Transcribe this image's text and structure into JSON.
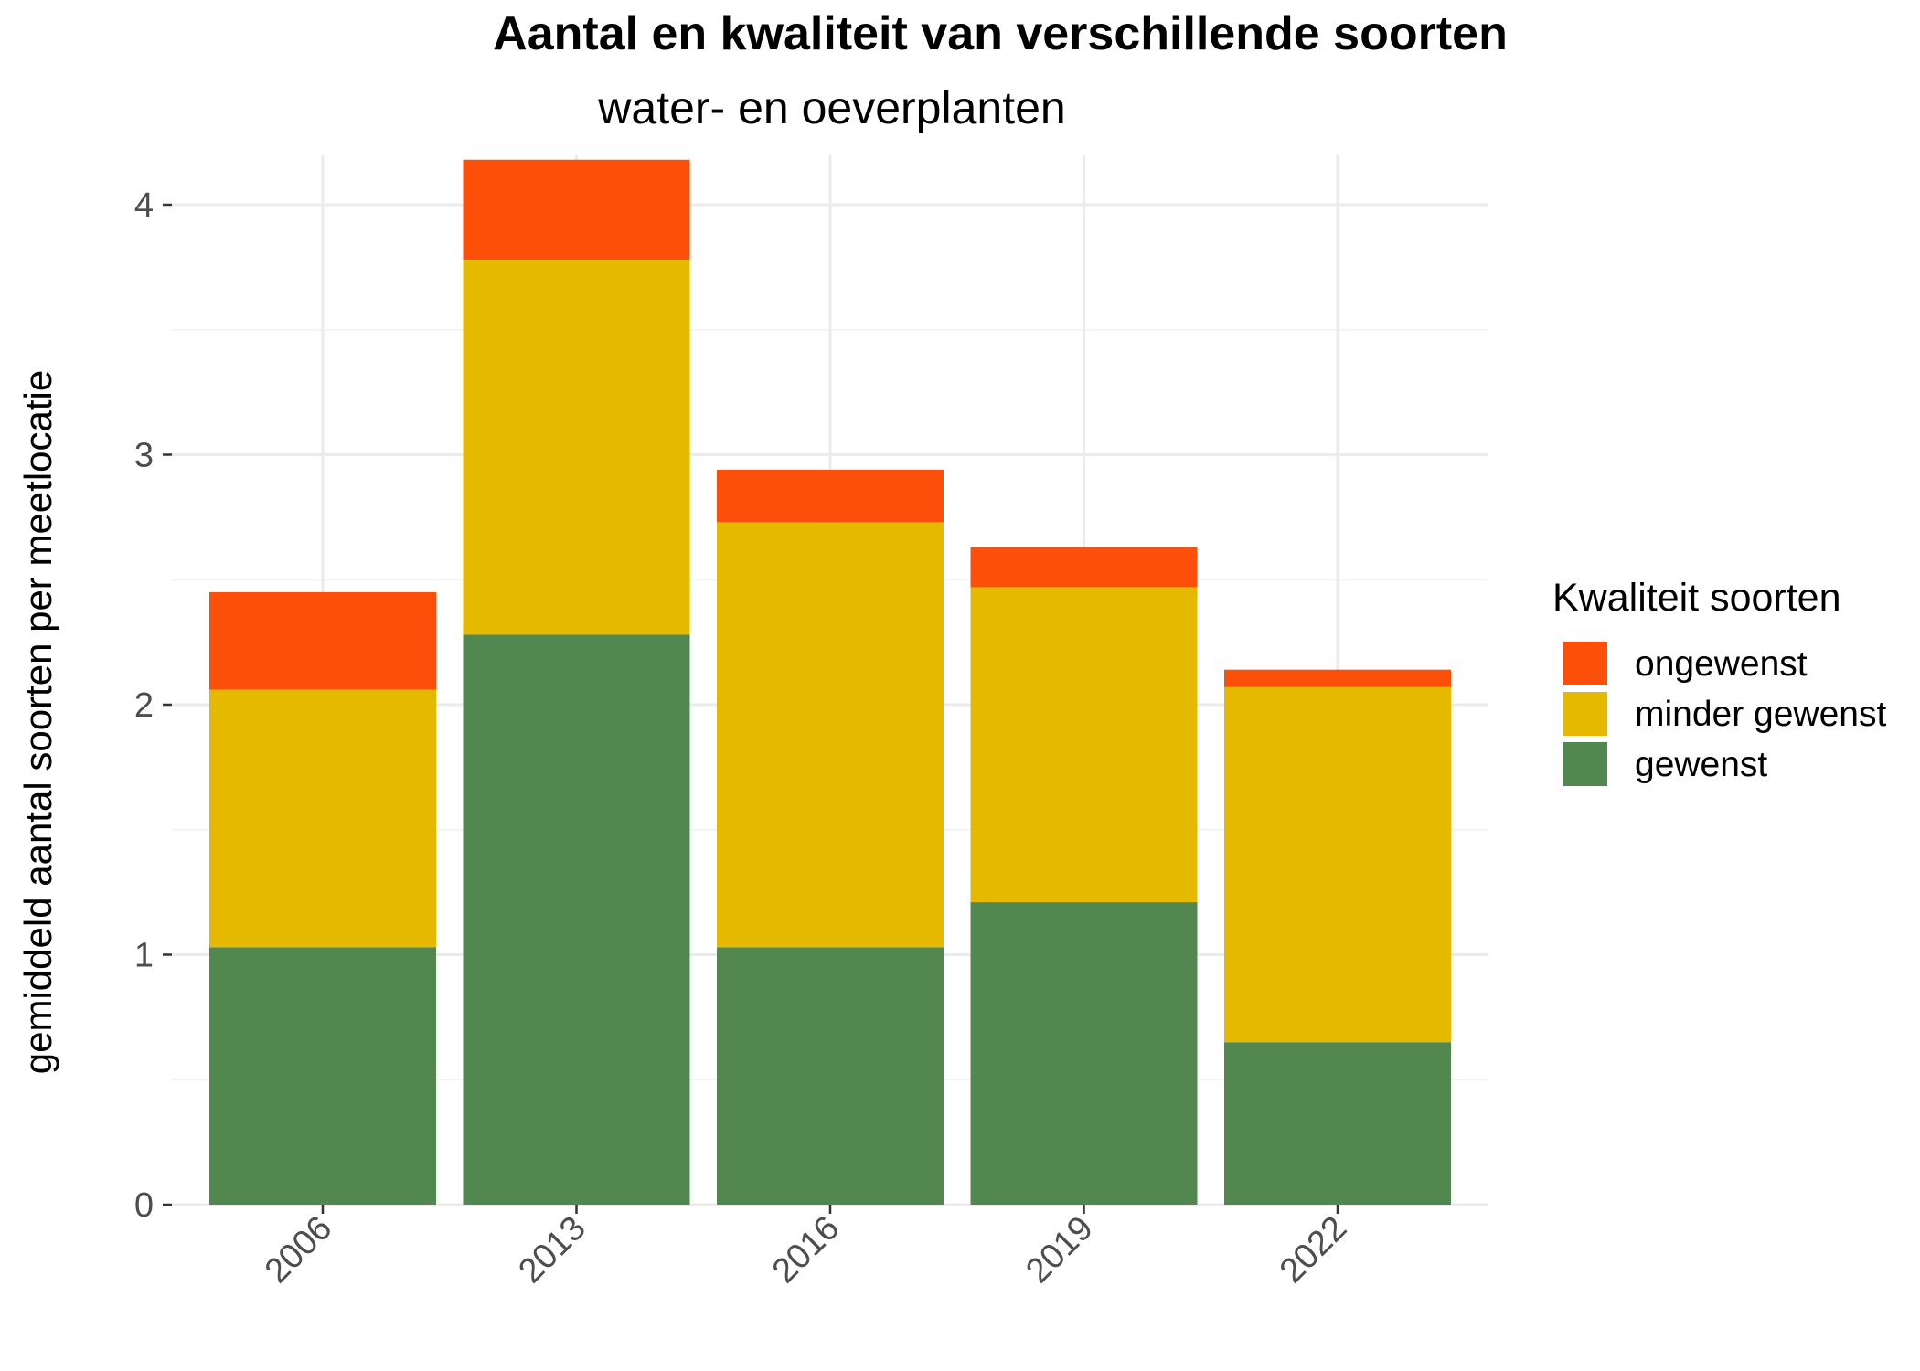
{
  "chart_data": {
    "type": "bar",
    "stacked": true,
    "title": "Aantal en kwaliteit van verschillende soorten",
    "subtitle": "water- en oeverplanten",
    "xlabel": "",
    "ylabel": "gemiddeld aantal soorten per meetlocatie",
    "categories": [
      "2006",
      "2013",
      "2016",
      "2019",
      "2022"
    ],
    "series": [
      {
        "name": "gewenst",
        "color": "#52874f",
        "values": [
          1.03,
          2.28,
          1.03,
          1.21,
          0.65
        ]
      },
      {
        "name": "minder gewenst",
        "color": "#e5b900",
        "values": [
          1.03,
          1.5,
          1.7,
          1.26,
          1.42
        ]
      },
      {
        "name": "ongewenst",
        "color": "#fc500a",
        "values": [
          0.39,
          0.4,
          0.21,
          0.16,
          0.07
        ]
      }
    ],
    "ylim": [
      0,
      4.2
    ],
    "yticks": [
      0,
      1,
      2,
      3,
      4
    ],
    "ytick_labels": [
      "0",
      "1",
      "2",
      "3",
      "4"
    ],
    "grid": true,
    "legend": {
      "title": "Kwaliteit soorten",
      "placement": "right",
      "order": [
        "ongewenst",
        "minder gewenst",
        "gewenst"
      ]
    }
  }
}
